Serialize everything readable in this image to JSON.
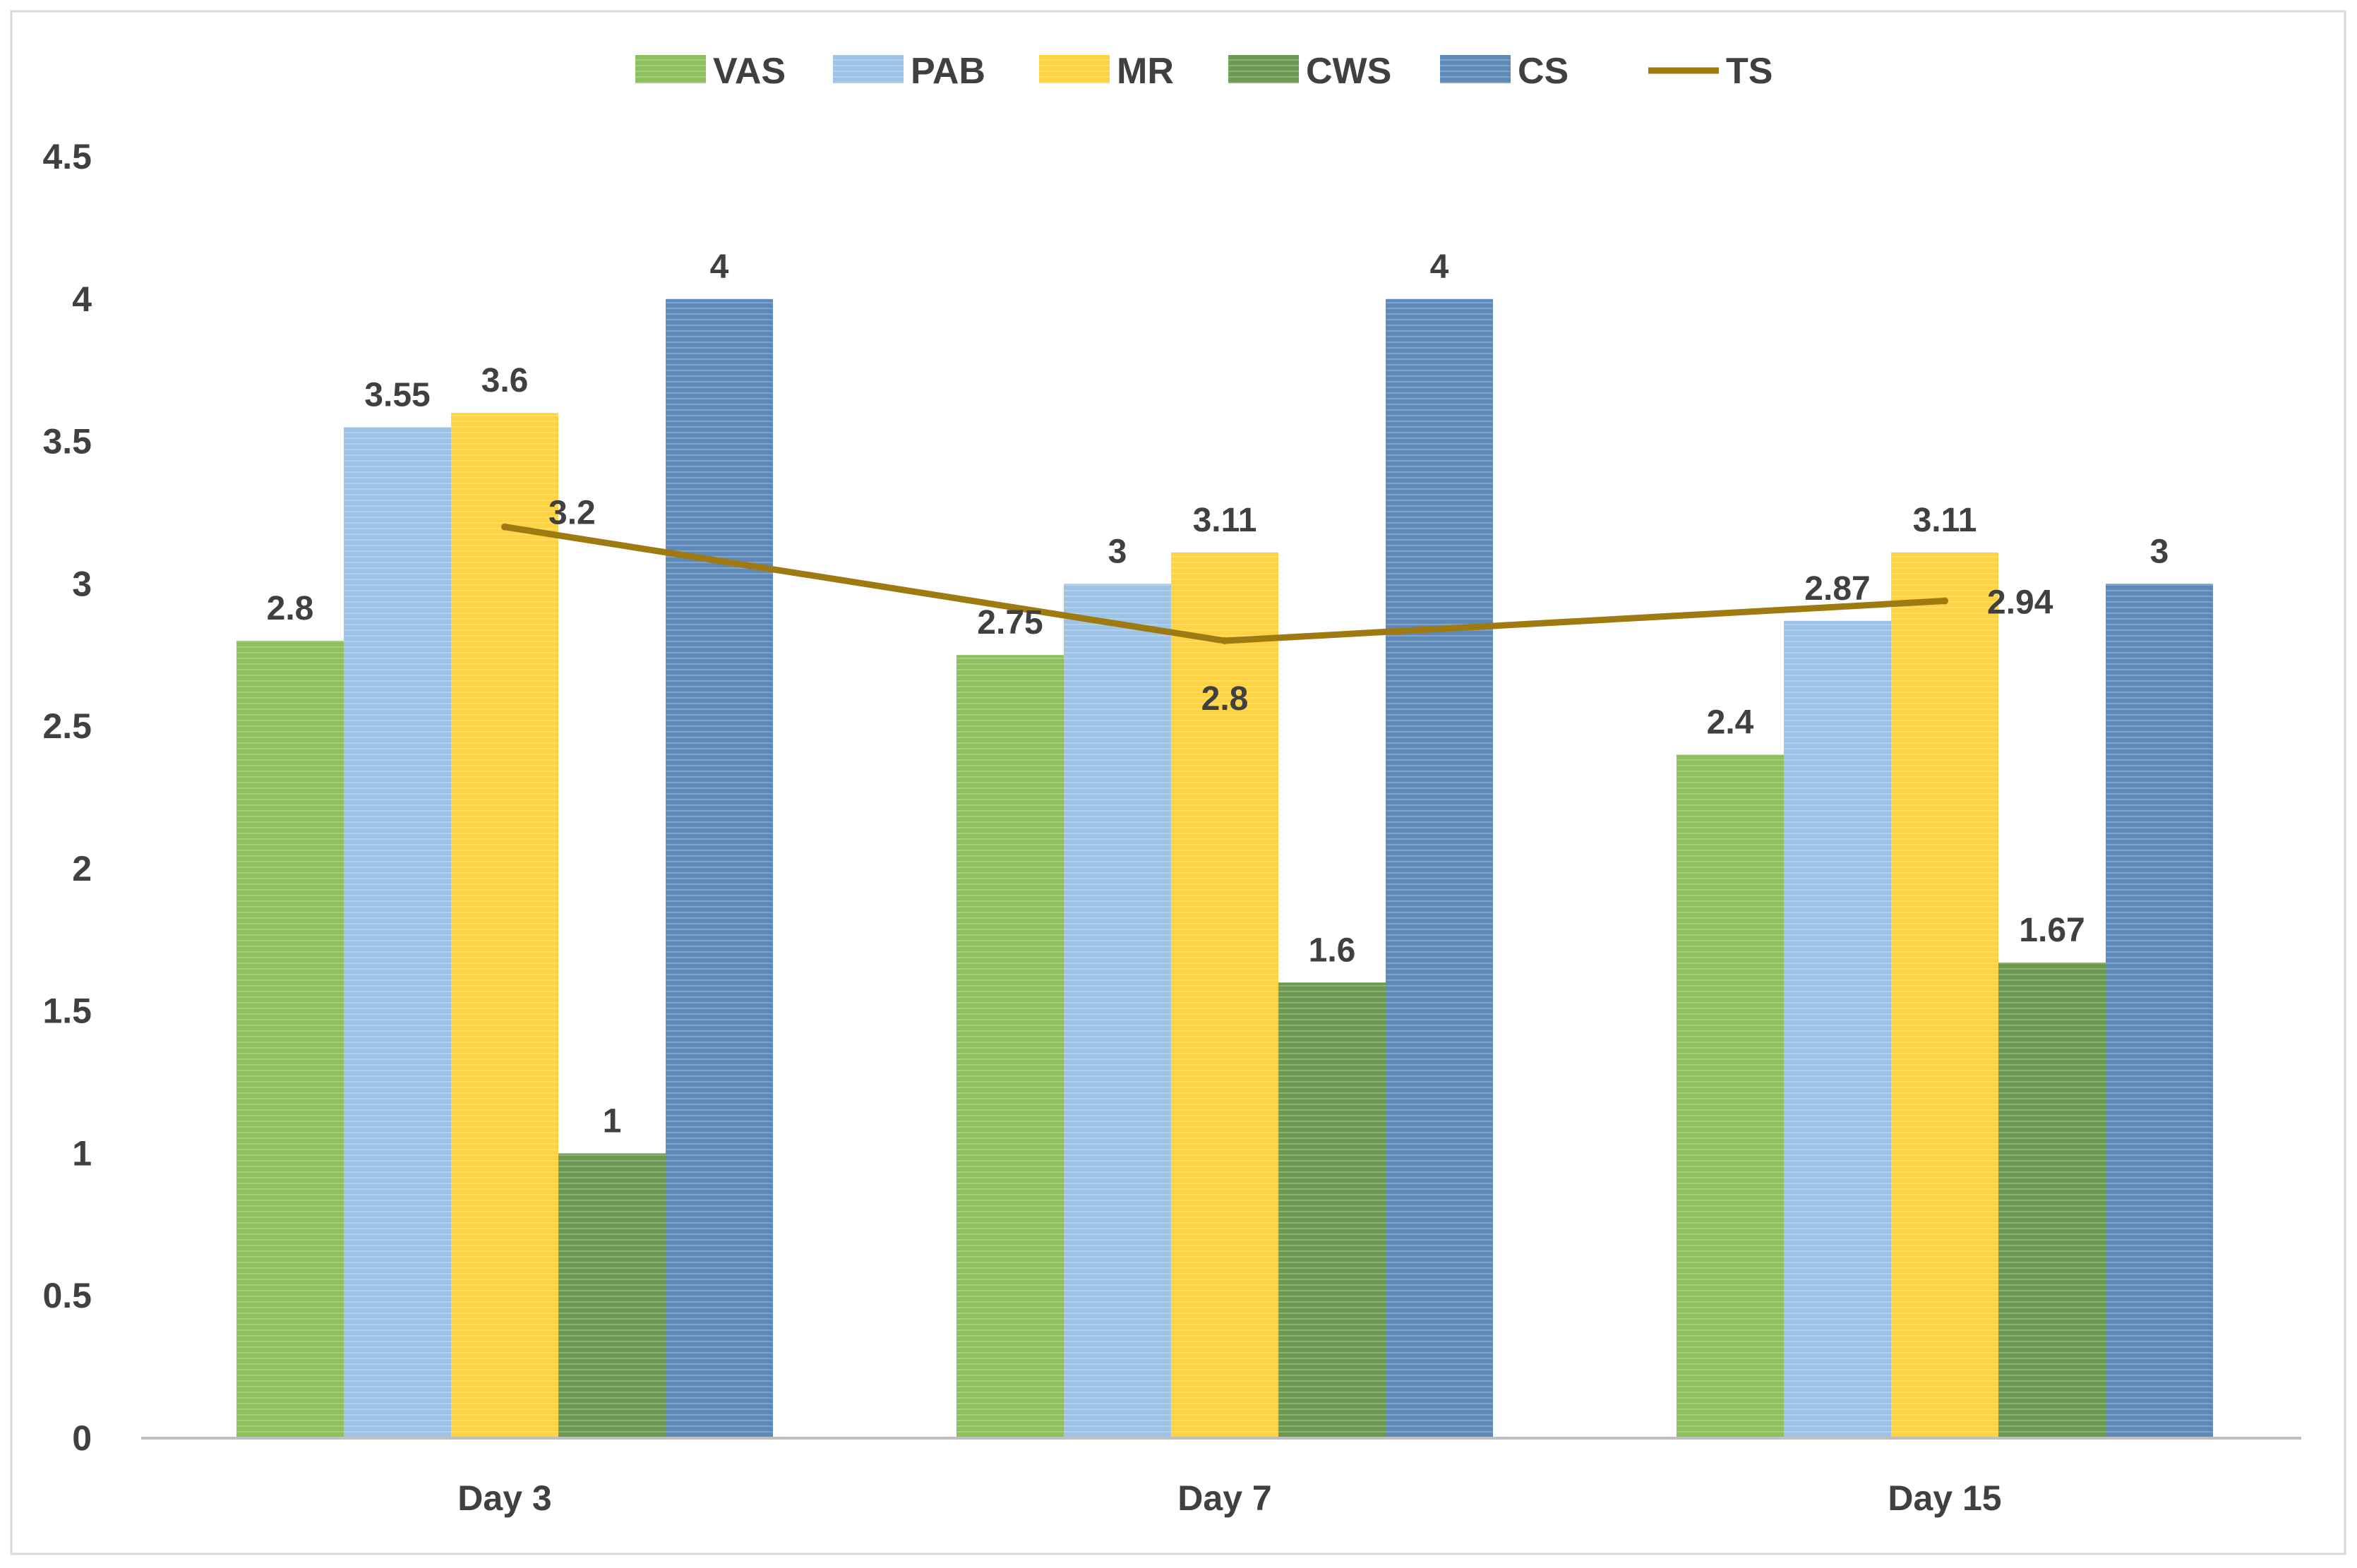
{
  "chart_data": {
    "type": "bar",
    "title": "",
    "xlabel": "",
    "ylabel": "",
    "ylim": [
      0,
      4.5
    ],
    "yticks": [
      "0",
      "0.5",
      "1",
      "1.5",
      "2",
      "2.5",
      "3",
      "3.5",
      "4",
      "4.5"
    ],
    "categories": [
      "Day 3",
      "Day 7",
      "Day 15"
    ],
    "legend_position": "top-center",
    "grid": false,
    "series": [
      {
        "name": "VAS",
        "kind": "bar",
        "color": "#8DBF5C",
        "values": [
          2.8,
          2.75,
          2.4
        ],
        "labels": [
          "2.8",
          "2.75",
          "2.4"
        ]
      },
      {
        "name": "PAB",
        "kind": "bar",
        "color": "#9DC3E6",
        "values": [
          3.55,
          3.0,
          2.87
        ],
        "labels": [
          "3.55",
          "3",
          "2.87"
        ]
      },
      {
        "name": "MR",
        "kind": "bar",
        "color": "#FFD33F",
        "values": [
          3.6,
          3.11,
          3.11
        ],
        "labels": [
          "3.6",
          "3.11",
          "3.11"
        ]
      },
      {
        "name": "CWS",
        "kind": "bar",
        "color": "#6C9A50",
        "values": [
          1.0,
          1.6,
          1.67
        ],
        "labels": [
          "1",
          "1.6",
          "1.67"
        ]
      },
      {
        "name": "CS",
        "kind": "bar",
        "color": "#5E89B8",
        "values": [
          4.0,
          4.0,
          3.0
        ],
        "labels": [
          "4",
          "4",
          "3"
        ]
      },
      {
        "name": "TS",
        "kind": "line",
        "color": "#9E7A10",
        "values": [
          3.2,
          2.8,
          2.94
        ],
        "labels": [
          "3.2",
          "2.8",
          "2.94"
        ]
      }
    ]
  }
}
